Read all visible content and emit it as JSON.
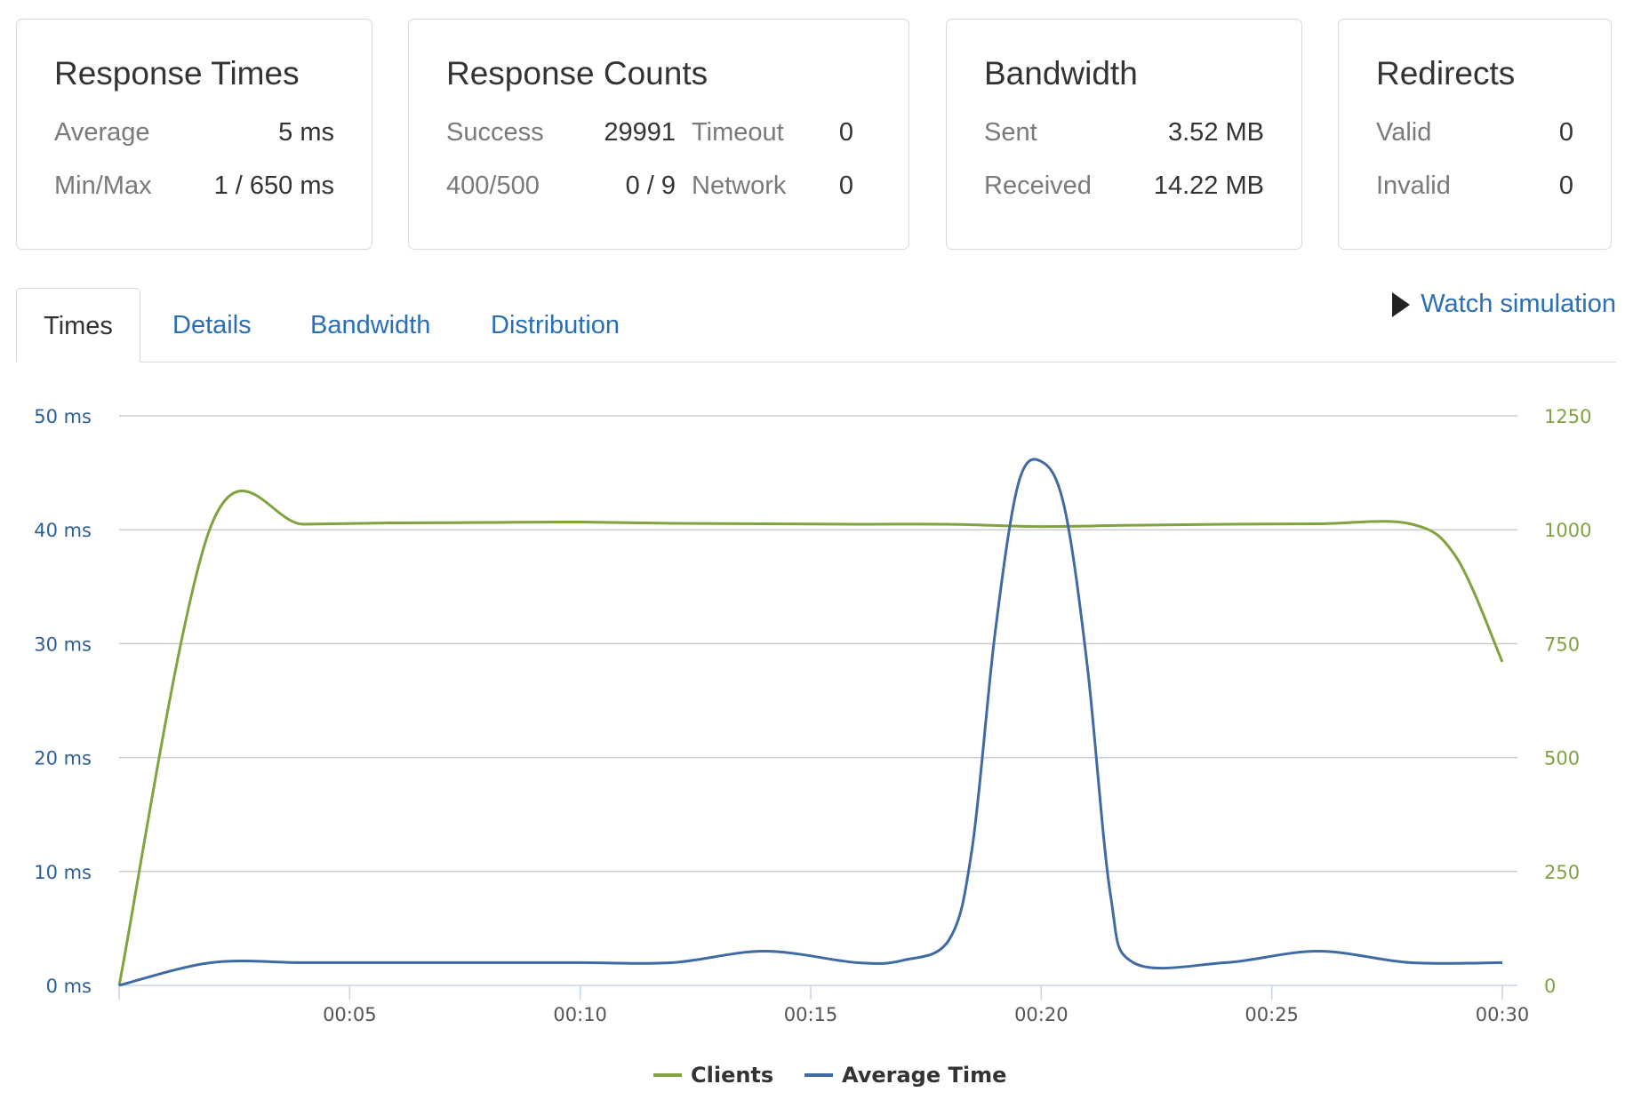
{
  "cards": {
    "response_times": {
      "title": "Response Times",
      "rows": [
        {
          "label": "Average",
          "value": "5 ms"
        },
        {
          "label": "Min/Max",
          "value": "1 / 650 ms"
        }
      ]
    },
    "response_counts": {
      "title": "Response Counts",
      "success_label": "Success",
      "success_value": "29991",
      "timeout_label": "Timeout",
      "timeout_value": "0",
      "errors_label": "400/500",
      "errors_value": "0 / 9",
      "network_label": "Network",
      "network_value": "0"
    },
    "bandwidth": {
      "title": "Bandwidth",
      "rows": [
        {
          "label": "Sent",
          "value": "3.52 MB"
        },
        {
          "label": "Received",
          "value": "14.22 MB"
        }
      ]
    },
    "redirects": {
      "title": "Redirects",
      "rows": [
        {
          "label": "Valid",
          "value": "0"
        },
        {
          "label": "Invalid",
          "value": "0"
        }
      ]
    }
  },
  "tabs": [
    {
      "label": "Times",
      "active": true
    },
    {
      "label": "Details",
      "active": false
    },
    {
      "label": "Bandwidth",
      "active": false
    },
    {
      "label": "Distribution",
      "active": false
    }
  ],
  "watch_simulation": {
    "label": "Watch simulation",
    "icon": "play-icon"
  },
  "colors": {
    "clients": "#7ea33f",
    "average_time": "#3f6aa3",
    "link": "#2a6eb5"
  },
  "chart_data": {
    "type": "line",
    "x": [
      0,
      2,
      4,
      6,
      8,
      10,
      12,
      14,
      16,
      17,
      18,
      18.5,
      19,
      19.5,
      20,
      20.5,
      21,
      21.5,
      22,
      24,
      26,
      28,
      30
    ],
    "x_ticks": [
      "00:05",
      "00:10",
      "00:15",
      "00:20",
      "00:25",
      "00:30"
    ],
    "x_tick_values": [
      5,
      10,
      15,
      20,
      25,
      30
    ],
    "xlim": [
      0,
      30
    ],
    "left_axis": {
      "label": "Average Time",
      "unit": "ms",
      "ylim": [
        0,
        50
      ],
      "ticks": [
        "0 ms",
        "10 ms",
        "20 ms",
        "30 ms",
        "40 ms",
        "50 ms"
      ],
      "tick_values": [
        0,
        10,
        20,
        30,
        40,
        50
      ]
    },
    "right_axis": {
      "label": "Clients",
      "ylim": [
        0,
        1250
      ],
      "ticks": [
        "0",
        "250",
        "500",
        "750",
        "1000",
        "1250"
      ],
      "tick_values": [
        0,
        250,
        500,
        750,
        1000,
        1250
      ]
    },
    "series": [
      {
        "name": "Clients",
        "axis": "right",
        "x": [
          0,
          2,
          4,
          6,
          8,
          10,
          12,
          14,
          16,
          18,
          20,
          22,
          24,
          26,
          28,
          29,
          30
        ],
        "values": [
          0,
          1010,
          1012,
          1015,
          1016,
          1017,
          1014,
          1013,
          1012,
          1012,
          1007,
          1010,
          1012,
          1013,
          1013,
          940,
          710
        ]
      },
      {
        "name": "Average Time",
        "axis": "left",
        "x": [
          0,
          2,
          4,
          6,
          8,
          10,
          12,
          14,
          16,
          17,
          18,
          18.5,
          19,
          19.5,
          20,
          20.5,
          21,
          21.5,
          22,
          24,
          26,
          28,
          30
        ],
        "values": [
          0,
          2,
          2,
          2,
          2,
          2,
          2,
          3,
          2,
          2.2,
          4,
          12,
          31,
          44,
          46,
          42,
          28,
          8,
          2,
          2,
          3,
          2,
          2
        ]
      }
    ],
    "legend": [
      "Clients",
      "Average Time"
    ],
    "legend_position": "bottom-center",
    "grid": true
  }
}
